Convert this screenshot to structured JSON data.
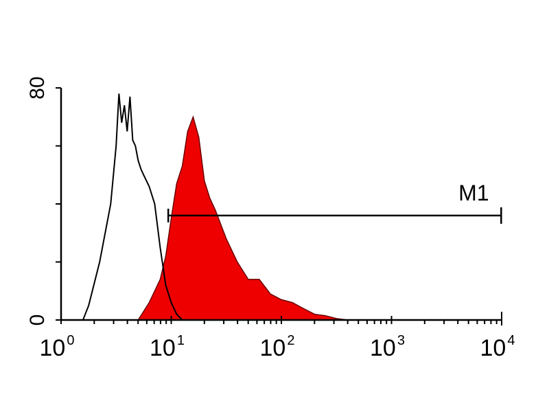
{
  "chart_data": {
    "type": "area",
    "title": "",
    "xlabel": "",
    "ylabel": "",
    "x_scale": "log",
    "xlim": [
      1,
      10000
    ],
    "ylim": [
      0,
      80
    ],
    "grid": false,
    "x_ticks": [
      {
        "value": 1,
        "base": "10",
        "exp": "0"
      },
      {
        "value": 10,
        "base": "10",
        "exp": "1"
      },
      {
        "value": 100,
        "base": "10",
        "exp": "2"
      },
      {
        "value": 1000,
        "base": "10",
        "exp": "3"
      },
      {
        "value": 10000,
        "base": "10",
        "exp": "4"
      }
    ],
    "y_ticks": [
      0,
      20,
      40,
      60,
      80
    ],
    "y_tick_labels": [
      {
        "value": 0,
        "label": "0"
      },
      {
        "value": 80,
        "label": "80"
      }
    ],
    "series": [
      {
        "style": "outline",
        "color": "#000000",
        "x": [
          1.58,
          1.78,
          2.24,
          2.82,
          3.16,
          3.35,
          3.55,
          3.76,
          3.98,
          4.22,
          4.47,
          4.73,
          5.01,
          5.31,
          5.62,
          6.31,
          7.08,
          7.94,
          8.91,
          10.0,
          11.2,
          12.6
        ],
        "y": [
          0,
          5,
          20,
          40,
          60,
          78,
          68,
          74,
          65,
          77,
          62,
          60,
          55,
          52,
          50,
          46,
          40,
          25,
          12,
          6,
          2,
          0
        ]
      },
      {
        "style": "filled",
        "color": "#ee0000",
        "x": [
          5.01,
          6.31,
          7.94,
          8.91,
          10.0,
          11.2,
          12.6,
          14.1,
          15.8,
          17.8,
          20.0,
          22.4,
          25.1,
          31.6,
          39.8,
          50.1,
          63.1,
          79.4,
          100,
          126,
          158,
          200,
          251,
          316,
          398
        ],
        "y": [
          0,
          6,
          14,
          22,
          35,
          47,
          53,
          65,
          70,
          63,
          48,
          42,
          38,
          28,
          20,
          14,
          14,
          9,
          7,
          6,
          4,
          2,
          1.5,
          0.5,
          0
        ]
      }
    ],
    "markers": [
      {
        "label": "M1",
        "x_start": 9.4,
        "x_end": 9900,
        "y": 36
      }
    ]
  }
}
